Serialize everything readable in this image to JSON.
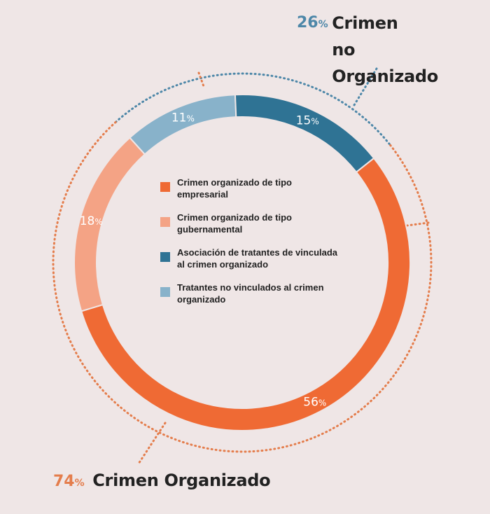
{
  "chart_data": {
    "type": "pie",
    "title": "",
    "slices": [
      {
        "label": "Crimen organizado de tipo empresarial",
        "value": 56,
        "color": "#ef6a34"
      },
      {
        "label": "Crimen organizado de tipo gubernamental",
        "value": 18,
        "color": "#f4a385"
      },
      {
        "label": "Asociación de tratantes de vinculada al crimen organizado",
        "value": 15,
        "color": "#2f7394"
      },
      {
        "label": "Tratantes no vinculados al crimen organizado",
        "value": 11,
        "color": "#88b2ca"
      }
    ],
    "groups": [
      {
        "label": "Crimen no Organizado",
        "value": 26,
        "value_text": "26",
        "unit": "%",
        "color": "#4d87a8"
      },
      {
        "label": "Crimen Organizado",
        "value": 74,
        "value_text": "74",
        "unit": "%",
        "color": "#e47d4c"
      }
    ],
    "legend_placement": "center",
    "value_unit": "%"
  },
  "colors": {
    "background": "#efe6e6",
    "organizado_ring": "#e47d4c",
    "no_organizado_ring": "#4d87a8"
  }
}
